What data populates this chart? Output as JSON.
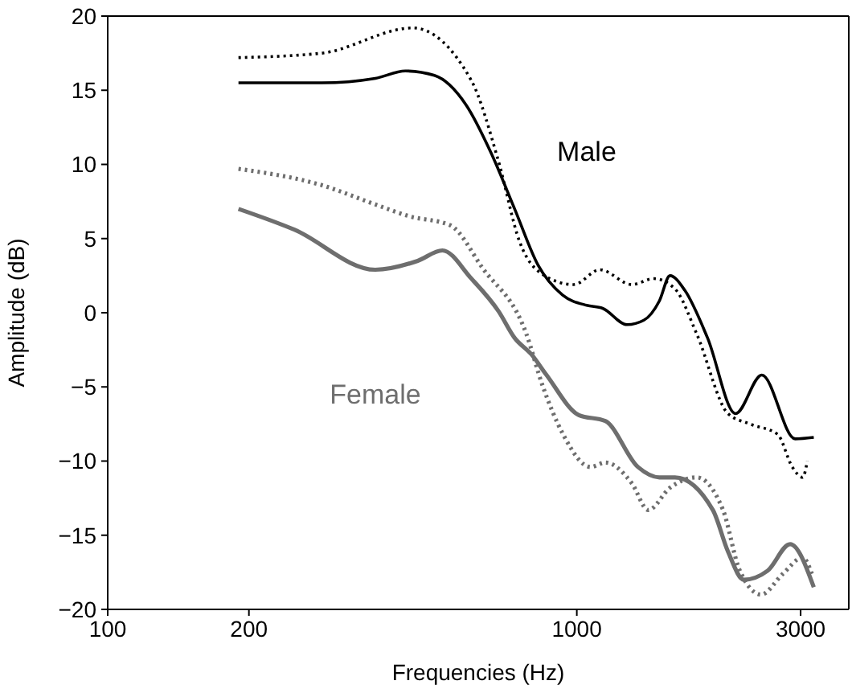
{
  "chart_data": {
    "type": "line",
    "xlabel": "Frequencies (Hz)",
    "ylabel": "Amplitude (dB)",
    "log": "x",
    "xlim": [
      100,
      3800
    ],
    "xticks": [
      100,
      200,
      1000,
      3000
    ],
    "ylim": [
      -20,
      20
    ],
    "yticks": [
      -20,
      -15,
      -10,
      -5,
      0,
      5,
      10,
      15,
      20
    ],
    "marker": "none",
    "series": [
      {
        "name": "Male",
        "color": "#000000",
        "line_style": "solid",
        "x": [
          190,
          286,
          372,
          431,
          497,
          581,
          656,
          737,
          827,
          932,
          1050,
          1135,
          1280,
          1390,
          1500,
          1580,
          1700,
          1900,
          2180,
          2480,
          2920,
          3200
        ],
        "values": [
          15.5,
          15.5,
          15.8,
          16.3,
          16,
          14,
          10.8,
          7,
          3.2,
          1.2,
          0.5,
          0.3,
          -0.8,
          -0.5,
          0.8,
          2.5,
          1.5,
          -1.7,
          -6.8,
          -4.2,
          -8.5,
          -8.4
        ]
      },
      {
        "color": "#000000",
        "line_style": "dotted",
        "x": [
          190,
          286,
          447,
          595,
          681,
          755,
          844,
          985,
          1120,
          1310,
          1460,
          1620,
          1800,
          2100,
          2340,
          2680,
          2880,
          3030,
          3100
        ],
        "values": [
          17.2,
          17.5,
          19.2,
          15.7,
          10.2,
          4.8,
          2.6,
          1.9,
          2.9,
          1.9,
          2.3,
          1.6,
          -1.4,
          -6.8,
          -7.5,
          -8.2,
          -10.4,
          -11.1,
          -10
        ]
      },
      {
        "name": "Female",
        "color": "#6e6e6e",
        "line_style": "solid",
        "x": [
          190,
          250,
          372,
          458,
          517,
          596,
          681,
          737,
          800,
          862,
          1010,
          1150,
          1350,
          1500,
          1620,
          1950,
          2100,
          2270,
          2550,
          2850,
          3200
        ],
        "values": [
          7,
          5.6,
          2.9,
          3.5,
          4.2,
          2.3,
          0.1,
          -1.7,
          -2.8,
          -4.2,
          -6.9,
          -7.3,
          -10.4,
          -11.1,
          -11.1,
          -13.3,
          -16.1,
          -18,
          -17.4,
          -15.6,
          -18.5
        ]
      },
      {
        "color": "#6e6e6e",
        "line_style": "dotted",
        "x": [
          190,
          286,
          372,
          440,
          537,
          630,
          780,
          845,
          935,
          1070,
          1150,
          1310,
          1420,
          1580,
          1800,
          2050,
          2220,
          2470,
          2750,
          3030,
          3170
        ],
        "values": [
          9.7,
          8.6,
          7.3,
          6.5,
          5.9,
          3,
          -1.4,
          -4.9,
          -8.2,
          -10.4,
          -10.1,
          -11.5,
          -13.3,
          -11.8,
          -11.1,
          -13.3,
          -17.3,
          -19,
          -17.6,
          -16.5,
          -17.6
        ]
      }
    ]
  }
}
